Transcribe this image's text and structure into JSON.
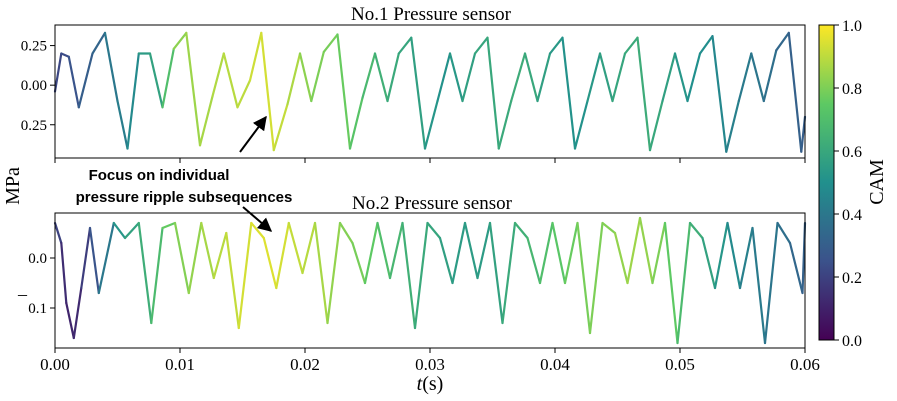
{
  "chart_data": [
    {
      "type": "line",
      "title": "No.1 Pressure sensor",
      "xlim": [
        0,
        0.06
      ],
      "ylim": [
        -0.46,
        0.38
      ],
      "y_tick_labels": [
        "0.25",
        "0.00",
        "0.25"
      ],
      "y_tick_values": [
        0.25,
        0.0,
        -0.25
      ],
      "color_by": "CAM",
      "x": [
        0.0,
        0.0005,
        0.0011,
        0.0019,
        0.003,
        0.004,
        0.005,
        0.0058,
        0.0067,
        0.0076,
        0.0086,
        0.0095,
        0.0105,
        0.0116,
        0.0126,
        0.0135,
        0.0146,
        0.0156,
        0.0165,
        0.0175,
        0.0186,
        0.0196,
        0.0205,
        0.0215,
        0.0226,
        0.0236,
        0.0246,
        0.0256,
        0.0266,
        0.0275,
        0.0285,
        0.0296,
        0.0306,
        0.0316,
        0.0326,
        0.0336,
        0.0346,
        0.0355,
        0.0365,
        0.0376,
        0.0386,
        0.0396,
        0.0406,
        0.0416,
        0.0426,
        0.0436,
        0.0446,
        0.0456,
        0.0466,
        0.0476,
        0.0486,
        0.0496,
        0.0506,
        0.0516,
        0.0526,
        0.0537,
        0.0547,
        0.0557,
        0.0567,
        0.0577,
        0.0587,
        0.0597,
        0.06
      ],
      "y": [
        -0.04,
        0.2,
        0.18,
        -0.14,
        0.2,
        0.33,
        -0.1,
        -0.4,
        0.2,
        0.2,
        -0.14,
        0.23,
        0.33,
        -0.38,
        -0.07,
        0.2,
        -0.14,
        0.03,
        0.33,
        -0.41,
        -0.12,
        0.2,
        -0.1,
        0.21,
        0.32,
        -0.4,
        -0.08,
        0.2,
        -0.1,
        0.2,
        0.3,
        -0.4,
        -0.1,
        0.2,
        -0.1,
        0.2,
        0.3,
        -0.4,
        -0.1,
        0.2,
        -0.1,
        0.2,
        0.3,
        -0.4,
        -0.1,
        0.2,
        -0.1,
        0.2,
        0.3,
        -0.41,
        -0.1,
        0.2,
        -0.1,
        0.2,
        0.31,
        -0.42,
        -0.1,
        0.2,
        -0.1,
        0.22,
        0.33,
        -0.42,
        -0.2
      ],
      "cam": [
        0.18,
        0.25,
        0.22,
        0.3,
        0.3,
        0.35,
        0.45,
        0.4,
        0.55,
        0.55,
        0.6,
        0.8,
        0.85,
        0.85,
        0.88,
        0.88,
        0.9,
        0.9,
        0.95,
        0.92,
        0.9,
        0.85,
        0.8,
        0.8,
        0.78,
        0.75,
        0.7,
        0.65,
        0.62,
        0.6,
        0.58,
        0.55,
        0.5,
        0.52,
        0.55,
        0.58,
        0.6,
        0.6,
        0.62,
        0.62,
        0.58,
        0.55,
        0.52,
        0.5,
        0.52,
        0.55,
        0.58,
        0.6,
        0.62,
        0.62,
        0.58,
        0.55,
        0.5,
        0.5,
        0.48,
        0.45,
        0.42,
        0.4,
        0.38,
        0.35,
        0.32,
        0.3,
        0.3
      ]
    },
    {
      "type": "line",
      "title": "No.2 Pressure sensor",
      "xlim": [
        0,
        0.06
      ],
      "ylim": [
        -0.18,
        0.09
      ],
      "y_tick_labels": [
        "0.0",
        "0.1"
      ],
      "y_tick_values": [
        0.0,
        -0.1
      ],
      "color_by": "CAM",
      "x": [
        0.0,
        0.0005,
        0.0009,
        0.0015,
        0.0021,
        0.0028,
        0.0035,
        0.0047,
        0.0056,
        0.0067,
        0.0077,
        0.0086,
        0.0096,
        0.0107,
        0.0117,
        0.0127,
        0.0137,
        0.0147,
        0.0157,
        0.0167,
        0.0177,
        0.0187,
        0.0198,
        0.0208,
        0.0218,
        0.0228,
        0.0238,
        0.0248,
        0.0258,
        0.0268,
        0.0278,
        0.0288,
        0.0298,
        0.0308,
        0.0318,
        0.0328,
        0.0338,
        0.0348,
        0.0358,
        0.0368,
        0.0378,
        0.0388,
        0.0398,
        0.0408,
        0.0418,
        0.0428,
        0.0438,
        0.0448,
        0.0458,
        0.0468,
        0.0478,
        0.0488,
        0.0498,
        0.0508,
        0.0518,
        0.0528,
        0.0538,
        0.0548,
        0.0558,
        0.0568,
        0.0578,
        0.0588,
        0.0598,
        0.06
      ],
      "y": [
        0.07,
        0.03,
        -0.09,
        -0.16,
        -0.06,
        0.06,
        -0.07,
        0.07,
        0.04,
        0.07,
        -0.13,
        0.06,
        0.07,
        -0.07,
        0.07,
        -0.04,
        0.05,
        -0.14,
        0.07,
        0.04,
        -0.06,
        0.07,
        -0.03,
        0.07,
        -0.13,
        0.07,
        0.03,
        -0.05,
        0.07,
        -0.04,
        0.07,
        -0.14,
        0.07,
        0.04,
        -0.05,
        0.07,
        -0.04,
        0.07,
        -0.13,
        0.07,
        0.04,
        -0.05,
        0.07,
        -0.05,
        0.07,
        -0.15,
        0.07,
        0.05,
        -0.05,
        0.08,
        -0.05,
        0.07,
        -0.17,
        0.07,
        0.04,
        -0.06,
        0.07,
        -0.06,
        0.06,
        -0.17,
        0.07,
        0.03,
        -0.07,
        0.07
      ],
      "cam": [
        0.25,
        0.15,
        0.12,
        0.1,
        0.15,
        0.22,
        0.3,
        0.5,
        0.55,
        0.6,
        0.65,
        0.72,
        0.8,
        0.82,
        0.85,
        0.88,
        0.9,
        0.92,
        0.95,
        0.95,
        0.95,
        0.92,
        0.9,
        0.88,
        0.85,
        0.82,
        0.8,
        0.78,
        0.72,
        0.68,
        0.65,
        0.62,
        0.6,
        0.58,
        0.55,
        0.55,
        0.55,
        0.55,
        0.6,
        0.62,
        0.65,
        0.68,
        0.72,
        0.75,
        0.78,
        0.8,
        0.8,
        0.82,
        0.85,
        0.85,
        0.82,
        0.78,
        0.72,
        0.65,
        0.6,
        0.55,
        0.5,
        0.45,
        0.42,
        0.4,
        0.38,
        0.35,
        0.32,
        0.3
      ]
    }
  ],
  "shared": {
    "ylabel": "MPa",
    "xlabel_italic": "t",
    "xlabel_unit": "(s)",
    "x_tick_labels": [
      "0.00",
      "0.01",
      "0.02",
      "0.03",
      "0.04",
      "0.05",
      "0.06"
    ],
    "x_tick_values": [
      0.0,
      0.01,
      0.02,
      0.03,
      0.04,
      0.05,
      0.06
    ],
    "minus_glyph": "–"
  },
  "colorbar": {
    "label": "CAM",
    "range": [
      0,
      1
    ],
    "tick_labels": [
      "0.0",
      "0.2",
      "0.4",
      "0.6",
      "0.8",
      "1.0"
    ],
    "tick_values": [
      0.0,
      0.2,
      0.4,
      0.6,
      0.8,
      1.0
    ],
    "colormap_stops": [
      "#440154",
      "#3b528b",
      "#21908d",
      "#5dc963",
      "#fde725"
    ]
  },
  "annotation": {
    "line1": "Focus on individual",
    "line2": "pressure ripple subsequences"
  }
}
